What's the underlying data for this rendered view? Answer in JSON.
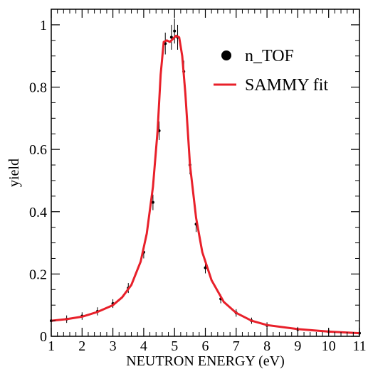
{
  "chart_data": {
    "type": "line",
    "title": "",
    "xlabel": "NEUTRON ENERGY (eV)",
    "ylabel": "yield",
    "xlim": [
      1,
      11
    ],
    "ylim": [
      0,
      1.05
    ],
    "x_ticks": [
      "1",
      "2",
      "3",
      "4",
      "5",
      "6",
      "7",
      "8",
      "9",
      "10",
      "11"
    ],
    "y_ticks": [
      "0",
      "0.2",
      "0.4",
      "0.6",
      "0.8",
      "1"
    ],
    "grid": false,
    "legend_position": "top-right",
    "series": [
      {
        "name": "n_TOF",
        "style": "points-with-error-bars",
        "color": "#000000",
        "x": [
          1.0,
          1.5,
          2.0,
          2.5,
          3.0,
          3.5,
          4.0,
          4.3,
          4.5,
          4.7,
          4.9,
          5.0,
          5.1,
          5.3,
          5.5,
          5.7,
          6.0,
          6.5,
          7.0,
          7.5,
          8.0,
          9.0,
          10.0,
          11.0
        ],
        "y": [
          0.05,
          0.055,
          0.065,
          0.08,
          0.105,
          0.155,
          0.27,
          0.43,
          0.66,
          0.94,
          0.96,
          0.98,
          0.96,
          0.85,
          0.55,
          0.36,
          0.22,
          0.12,
          0.075,
          0.05,
          0.035,
          0.022,
          0.015,
          0.01
        ],
        "error": [
          0.012,
          0.012,
          0.012,
          0.013,
          0.014,
          0.016,
          0.02,
          0.025,
          0.03,
          0.035,
          0.04,
          0.04,
          0.04,
          0.035,
          0.03,
          0.025,
          0.018,
          0.014,
          0.012,
          0.01,
          0.01,
          0.008,
          0.008,
          0.008
        ]
      },
      {
        "name": "SAMMY fit",
        "style": "line",
        "color": "#e8202a",
        "x": [
          1.0,
          1.5,
          2.0,
          2.5,
          3.0,
          3.3,
          3.6,
          3.9,
          4.1,
          4.3,
          4.45,
          4.55,
          4.65,
          4.75,
          4.85,
          4.95,
          5.05,
          5.15,
          5.25,
          5.35,
          5.5,
          5.7,
          5.9,
          6.2,
          6.6,
          7.0,
          7.5,
          8.0,
          9.0,
          10.0,
          11.0
        ],
        "y": [
          0.05,
          0.055,
          0.063,
          0.078,
          0.1,
          0.125,
          0.165,
          0.24,
          0.33,
          0.48,
          0.66,
          0.84,
          0.945,
          0.95,
          0.945,
          0.955,
          0.965,
          0.96,
          0.9,
          0.78,
          0.55,
          0.38,
          0.27,
          0.18,
          0.11,
          0.075,
          0.05,
          0.036,
          0.023,
          0.015,
          0.01
        ]
      }
    ]
  }
}
